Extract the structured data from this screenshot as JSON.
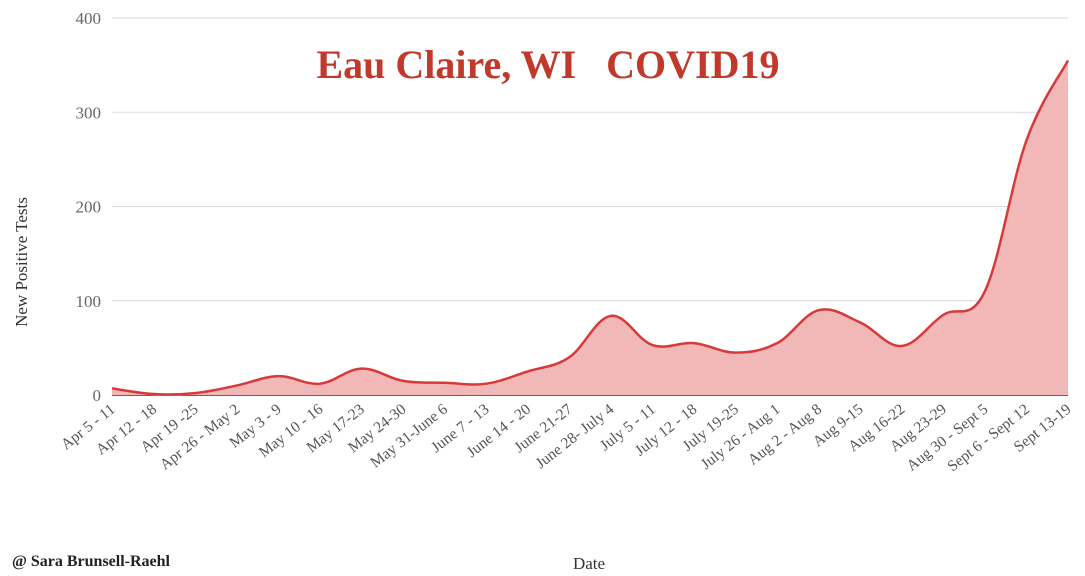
{
  "chart_data": {
    "type": "area",
    "title": "Eau Claire, WI   COVID19",
    "xlabel": "Date",
    "ylabel": "New Positive Tests",
    "ylim": [
      0,
      400
    ],
    "yticks": [
      0,
      100,
      200,
      300,
      400
    ],
    "grid": true,
    "categories": [
      "Apr 5 - 11",
      "Apr 12 - 18",
      "Apr 19 -25",
      "Apr 26 - May 2",
      "May 3 - 9",
      "May 10 - 16",
      "May 17-23",
      "May 24-30",
      "May 31-June 6",
      "June 7 - 13",
      "June 14 - 20",
      "June 21-27",
      "June 28- July 4",
      "July 5 - 11",
      "July 12 - 18",
      "July 19-25",
      "July 26 - Aug 1",
      "Aug 2 - Aug 8",
      "Aug 9-15",
      "Aug 16-22",
      "Aug 23-29",
      "Aug 30 - Sept 5",
      "Sept 6 - Sept 12",
      "Sept 13-19"
    ],
    "series": [
      {
        "values": [
          7,
          1,
          2,
          10,
          20,
          12,
          28,
          15,
          13,
          12,
          25,
          40,
          84,
          53,
          55,
          45,
          55,
          90,
          77,
          52,
          85,
          110,
          270,
          355
        ]
      }
    ],
    "colors": {
      "line": "#d63a3a",
      "fill": "#f2b8b8",
      "grid": "#d9d9d9",
      "title": "#c0392b"
    }
  },
  "credit": "@ Sara Brunsell-Raehl"
}
